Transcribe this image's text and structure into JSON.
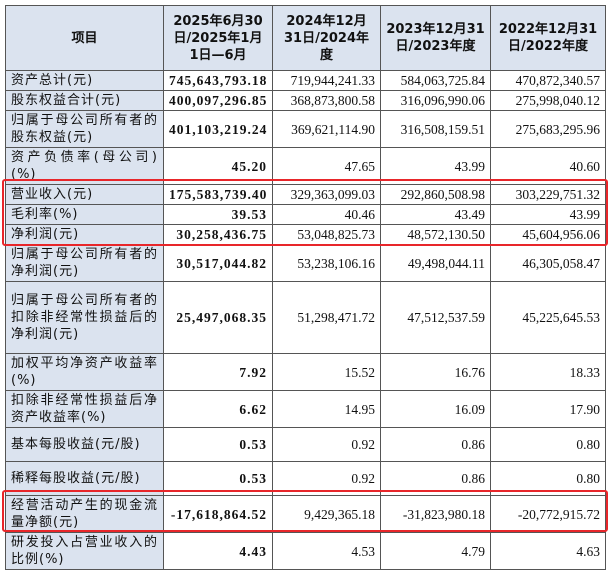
{
  "table": {
    "header": [
      "项目",
      "2025年6月30日/2025年1月1日—6月",
      "2024年12月31日/2024年度",
      "2023年12月31日/2023年度",
      "2022年12月31日/2022年度"
    ],
    "rows": [
      [
        "资产总计(元)",
        "745,643,793.18",
        "719,944,241.33",
        "584,063,725.84",
        "470,872,340.57"
      ],
      [
        "股东权益合计(元)",
        "400,097,296.85",
        "368,873,800.58",
        "316,096,990.06",
        "275,998,040.12"
      ],
      [
        "归属于母公司所有者的股东权益(元)",
        "401,103,219.24",
        "369,621,114.90",
        "316,508,159.51",
        "275,683,295.96"
      ],
      [
        "资产负债率(母公司)(%)",
        "45.20",
        "47.65",
        "43.99",
        "40.60"
      ],
      [
        "营业收入(元)",
        "175,583,739.40",
        "329,363,099.03",
        "292,860,508.98",
        "303,229,751.32"
      ],
      [
        "毛利率(%)",
        "39.53",
        "40.46",
        "43.49",
        "43.99"
      ],
      [
        "净利润(元)",
        "30,258,436.75",
        "53,048,825.73",
        "48,572,130.50",
        "45,604,956.06"
      ],
      [
        "归属于母公司所有者的净利润(元)",
        "30,517,044.82",
        "53,238,106.16",
        "49,498,044.11",
        "46,305,058.47"
      ],
      [
        "归属于母公司所有者的扣除非经常性损益后的净利润(元)",
        "25,497,068.35",
        "51,298,471.72",
        "47,512,537.59",
        "45,225,645.53"
      ],
      [
        "加权平均净资产收益率(%)",
        "7.92",
        "15.52",
        "16.76",
        "18.33"
      ],
      [
        "扣除非经常性损益后净资产收益率(%)",
        "6.62",
        "14.95",
        "16.09",
        "17.90"
      ],
      [
        "基本每股收益(元/股)",
        "0.53",
        "0.92",
        "0.86",
        "0.80"
      ],
      [
        "稀释每股收益(元/股)",
        "0.53",
        "0.92",
        "0.86",
        "0.80"
      ],
      [
        "经营活动产生的现金流量净额(元)",
        "-17,618,864.52",
        "9,429,365.18",
        "-31,823,980.18",
        "-20,772,915.72"
      ],
      [
        "研发投入占营业收入的比例(%)",
        "4.43",
        "4.53",
        "4.79",
        "4.63"
      ]
    ]
  }
}
